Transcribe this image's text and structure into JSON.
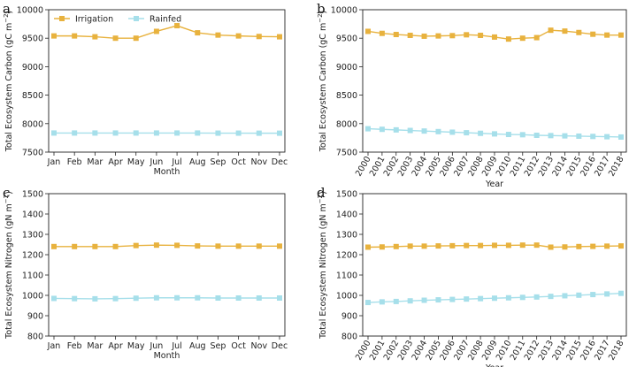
{
  "colors": {
    "Irrigation": "#E8B23E",
    "Rainfed": "#A6DFEA"
  },
  "legend": {
    "location": "upper-left",
    "entries": [
      "Irrigation",
      "Rainfed"
    ]
  },
  "chart_data": [
    {
      "panel": "a",
      "type": "line",
      "categories": [
        "Jan",
        "Feb",
        "Mar",
        "Apr",
        "May",
        "Jun",
        "Jul",
        "Aug",
        "Sep",
        "Oct",
        "Nov",
        "Dec"
      ],
      "xlabel": "Month",
      "ylabel": "Total Ecosystem Carbon (gC m",
      "ylabel_unit_sup": "−2",
      "ylim": [
        7500,
        10000
      ],
      "yticks": [
        7500,
        8000,
        8500,
        9000,
        9500,
        10000
      ],
      "series": [
        {
          "name": "Irrigation",
          "values": [
            9540,
            9540,
            9525,
            9500,
            9500,
            9620,
            9720,
            9595,
            9555,
            9540,
            9530,
            9525
          ]
        },
        {
          "name": "Rainfed",
          "values": [
            7835,
            7835,
            7835,
            7835,
            7835,
            7835,
            7835,
            7835,
            7833,
            7833,
            7832,
            7832
          ]
        }
      ]
    },
    {
      "panel": "b",
      "type": "line",
      "categories": [
        "2000",
        "2001",
        "2002",
        "2003",
        "2004",
        "2005",
        "2006",
        "2007",
        "2008",
        "2009",
        "2010",
        "2011",
        "2012",
        "2013",
        "2014",
        "2015",
        "2016",
        "2017",
        "2018"
      ],
      "xlabel": "Year",
      "ylabel": "Total Ecosystem Carbon (gC m",
      "ylabel_unit_sup": "−2",
      "ylim": [
        7500,
        10000
      ],
      "yticks": [
        7500,
        8000,
        8500,
        9000,
        9500,
        10000
      ],
      "series": [
        {
          "name": "Irrigation",
          "values": [
            9620,
            9585,
            9565,
            9550,
            9535,
            9540,
            9545,
            9560,
            9550,
            9520,
            9485,
            9500,
            9510,
            9640,
            9625,
            9600,
            9570,
            9555,
            9555
          ]
        },
        {
          "name": "Rainfed",
          "values": [
            7910,
            7900,
            7890,
            7880,
            7870,
            7860,
            7850,
            7840,
            7830,
            7820,
            7810,
            7805,
            7795,
            7790,
            7785,
            7780,
            7775,
            7770,
            7765
          ]
        }
      ]
    },
    {
      "panel": "c",
      "type": "line",
      "categories": [
        "Jan",
        "Feb",
        "Mar",
        "Apr",
        "May",
        "Jun",
        "Jul",
        "Aug",
        "Sep",
        "Oct",
        "Nov",
        "Dec"
      ],
      "xlabel": "Month",
      "ylabel": "Total Ecosystem Nitrogen (gN m",
      "ylabel_unit_sup": "−2",
      "ylim": [
        800,
        1500
      ],
      "yticks": [
        800,
        900,
        1000,
        1100,
        1200,
        1300,
        1400,
        1500
      ],
      "series": [
        {
          "name": "Irrigation",
          "values": [
            1240,
            1240,
            1240,
            1240,
            1245,
            1247,
            1246,
            1243,
            1242,
            1242,
            1242,
            1242
          ]
        },
        {
          "name": "Rainfed",
          "values": [
            985,
            984,
            983,
            984,
            986,
            988,
            988,
            988,
            987,
            987,
            987,
            987
          ]
        }
      ]
    },
    {
      "panel": "d",
      "type": "line",
      "categories": [
        "2000",
        "2001",
        "2002",
        "2003",
        "2004",
        "2005",
        "2006",
        "2007",
        "2008",
        "2009",
        "2010",
        "2011",
        "2012",
        "2013",
        "2014",
        "2015",
        "2016",
        "2017",
        "2018"
      ],
      "xlabel": "Year",
      "ylabel": "Total Ecosystem Nitrogen (gN m",
      "ylabel_unit_sup": "−2",
      "ylim": [
        800,
        1500
      ],
      "yticks": [
        800,
        900,
        1000,
        1100,
        1200,
        1300,
        1400,
        1500
      ],
      "series": [
        {
          "name": "Irrigation",
          "values": [
            1237,
            1238,
            1240,
            1242,
            1242,
            1243,
            1244,
            1245,
            1245,
            1246,
            1246,
            1247,
            1247,
            1237,
            1238,
            1240,
            1241,
            1242,
            1243
          ]
        },
        {
          "name": "Rainfed",
          "values": [
            965,
            968,
            970,
            973,
            976,
            978,
            980,
            982,
            984,
            986,
            988,
            990,
            992,
            995,
            998,
            1001,
            1004,
            1007,
            1010
          ]
        }
      ]
    }
  ]
}
